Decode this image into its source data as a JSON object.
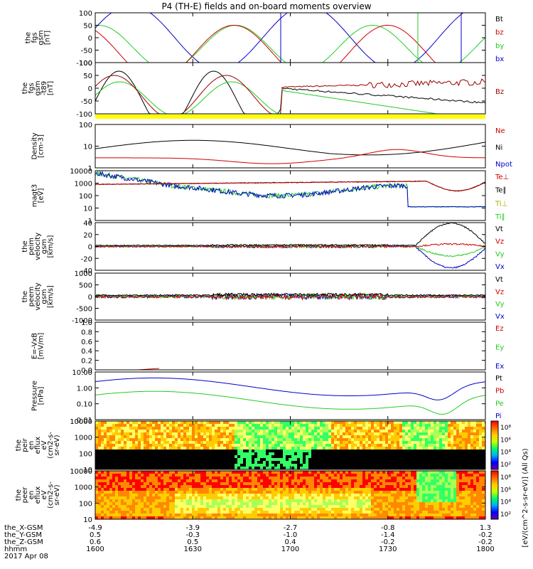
{
  "title": "P4 (TH-E) fields and on-board moments overview",
  "chart_data": {
    "type": "line",
    "title": "P4 (TH-E) fields and on-board moments overview",
    "date": "2017 Apr 08",
    "x_time_ticks": [
      "1600",
      "1630",
      "1700",
      "1730",
      "1800"
    ],
    "orbit_rows": [
      {
        "label": "the_X-GSM",
        "values": [
          "-4.9",
          "-3.9",
          "-2.7",
          "-0.8",
          "1.3"
        ]
      },
      {
        "label": "the_Y-GSM",
        "values": [
          "0.5",
          "-0.3",
          "-1.0",
          "-1.4",
          "-0.2"
        ]
      },
      {
        "label": "the_Z-GSM",
        "values": [
          "0.6",
          "0.5",
          "0.4",
          "-0.2",
          "-0.2"
        ]
      },
      {
        "label": "hhmm",
        "values": [
          "1600",
          "1630",
          "1700",
          "1730",
          "1800"
        ]
      }
    ],
    "panels": [
      {
        "id": "fgs",
        "ylabel": [
          "the",
          "fgs",
          "gsm",
          "[nT]"
        ],
        "yticks": [
          "100",
          "50",
          "0",
          "-50",
          "-100"
        ],
        "ylim": [
          -100,
          100
        ],
        "legend": [
          {
            "name": "Bt",
            "color": "#000000"
          },
          {
            "name": "bz",
            "color": "#cc0000"
          },
          {
            "name": "by",
            "color": "#22cc22"
          },
          {
            "name": "bx",
            "color": "#0000cc"
          }
        ]
      },
      {
        "id": "fgs_t89",
        "ylabel": [
          "the",
          "fgs",
          "gsm",
          "-t89",
          "[nT]"
        ],
        "yticks": [
          "100",
          "50",
          "0",
          "-50",
          "-100"
        ],
        "ylim": [
          -120,
          120
        ],
        "legend": [
          {
            "name": "Bz",
            "color": "#990000"
          }
        ]
      },
      {
        "id": "density",
        "ylabel": [
          "Density",
          "[cm-3]"
        ],
        "yticks": [
          "100",
          "10",
          "1"
        ],
        "scale": "log",
        "legend": [
          {
            "name": "Ne",
            "color": "#cc0000"
          },
          {
            "name": "Ni",
            "color": "#000000"
          },
          {
            "name": "Npot",
            "color": "#0000cc"
          }
        ]
      },
      {
        "id": "temp",
        "ylabel": [
          "magt3",
          "[eV]"
        ],
        "yticks": [
          "10000",
          "1000",
          "100",
          "10",
          "1"
        ],
        "scale": "log",
        "legend": [
          {
            "name": "Te⊥",
            "color": "#cc0000"
          },
          {
            "name": "Te∥",
            "color": "#000000"
          },
          {
            "name": "Ti⊥",
            "color": "#aaaa00"
          },
          {
            "name": "Ti∥",
            "color": "#22cc22"
          }
        ]
      },
      {
        "id": "peim_vel",
        "ylabel": [
          "the",
          "peim",
          "velocity",
          "gsm",
          "[km/s]"
        ],
        "yticks": [
          "40",
          "20",
          "0",
          "-20",
          "-40"
        ],
        "ylim": [
          -40,
          40
        ],
        "legend": [
          {
            "name": "Vt",
            "color": "#000000"
          },
          {
            "name": "Vz",
            "color": "#cc0000"
          },
          {
            "name": "Vy",
            "color": "#22cc22"
          },
          {
            "name": "Vx",
            "color": "#0000cc"
          }
        ]
      },
      {
        "id": "peem_vel",
        "ylabel": [
          "the",
          "peem",
          "velocity",
          "gsm",
          "[km/s]"
        ],
        "yticks": [
          "1000",
          "500",
          "0",
          "-500",
          "-1000"
        ],
        "ylim": [
          -1000,
          1000
        ],
        "legend": [
          {
            "name": "Vt",
            "color": "#000000"
          },
          {
            "name": "Vz",
            "color": "#cc0000"
          },
          {
            "name": "Vy",
            "color": "#22cc22"
          },
          {
            "name": "Vx",
            "color": "#0000cc"
          }
        ]
      },
      {
        "id": "efield",
        "ylabel": [
          "E=-VxB",
          "[mV/m]"
        ],
        "yticks": [
          "1.0",
          "0.8",
          "0.6",
          "0.4",
          "0.2",
          "0.0"
        ],
        "ylim": [
          0,
          1
        ],
        "legend": [
          {
            "name": "Ez",
            "color": "#cc0000"
          },
          {
            "name": "Ey",
            "color": "#22cc22"
          },
          {
            "name": "Ex",
            "color": "#0000cc"
          }
        ]
      },
      {
        "id": "pressure",
        "ylabel": [
          "Pressure",
          "[nPa]"
        ],
        "yticks": [
          "10.00",
          "1.00",
          "0.10",
          "0.01"
        ],
        "scale": "log",
        "legend": [
          {
            "name": "Pt",
            "color": "#000000"
          },
          {
            "name": "Pb",
            "color": "#cc0000"
          },
          {
            "name": "Pe",
            "color": "#22cc22"
          },
          {
            "name": "Pi",
            "color": "#0000cc"
          }
        ]
      },
      {
        "id": "peir_spec",
        "ylabel": [
          "the",
          "peir",
          "en",
          "eflux",
          "eV",
          "(cm2-s-",
          "sr-eV)"
        ],
        "yticks": [
          "10000",
          "1000",
          "100",
          "10"
        ],
        "type": "spectrogram"
      },
      {
        "id": "peer_spec",
        "ylabel": [
          "the",
          "peer",
          "en",
          "eflux",
          "eV",
          "(cm2-s-",
          "sr-eV)"
        ],
        "yticks": [
          "10000",
          "1000",
          "100",
          "10"
        ],
        "type": "spectrogram"
      }
    ],
    "colorbar": {
      "label": "[eV/(cm^2-s-sr-eV)] (All Qs)",
      "ticks_top": [
        "10⁸",
        "10⁶",
        "10⁴",
        "10²"
      ],
      "ticks_bottom": [
        "10⁸",
        "10⁶",
        "10⁴",
        "10²"
      ]
    }
  }
}
